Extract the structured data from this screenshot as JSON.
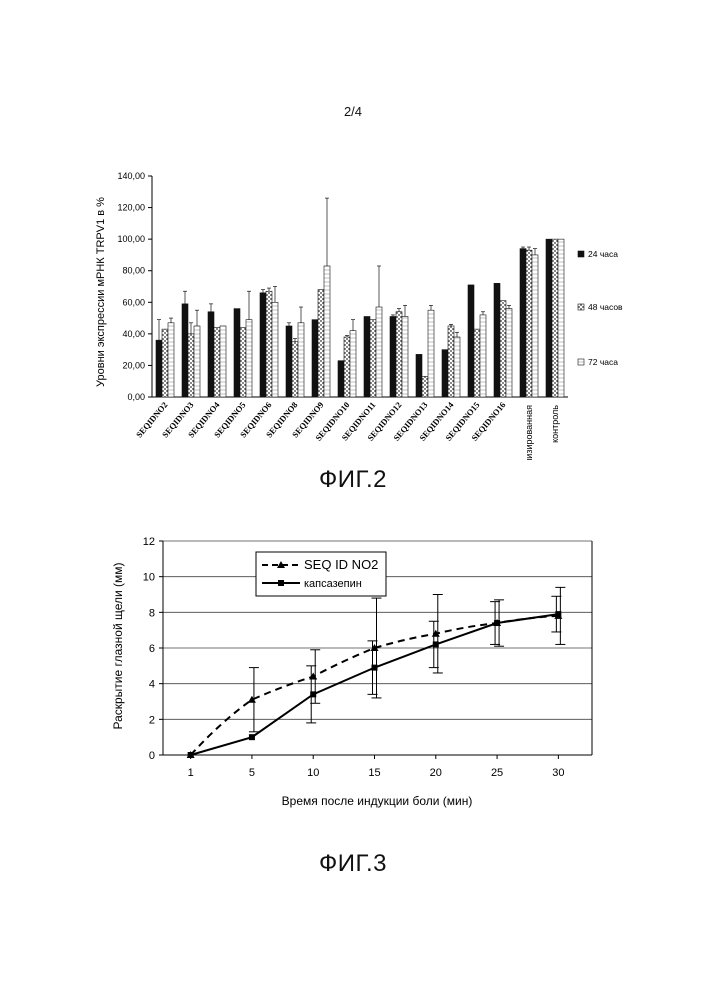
{
  "page_number": "2/4",
  "chart_data": [
    {
      "type": "bar",
      "caption": "ФИГ.2",
      "title": "",
      "ylabel": "Уровни экспрессии мРНК TRPV1 в %",
      "xlabel": "",
      "ylim": [
        0,
        140
      ],
      "yticks": [
        "0,00",
        "20,00",
        "40,00",
        "60,00",
        "80,00",
        "100,00",
        "120,00",
        "140,00"
      ],
      "categories": [
        "SEQIDNO2",
        "SEQIDNO3",
        "SEQIDNO4",
        "SEQIDNO5",
        "SEQIDNO6",
        "SEQIDNO8",
        "SEQIDNO9",
        "SEQIDNO10",
        "SEQIDNO11",
        "SEQIDNO12",
        "SEQIDNO13",
        "SEQIDNO14",
        "SEQIDNO15",
        "SEQIDNO16",
        "рандомизированная",
        "контроль"
      ],
      "series": [
        {
          "name": "24 часа",
          "pattern": "solid",
          "values": [
            36,
            59,
            54,
            56,
            66,
            45,
            49,
            23,
            51,
            51,
            27,
            30,
            71,
            72,
            94,
            100
          ],
          "errors": [
            13,
            8,
            5,
            0,
            2,
            2,
            0,
            0,
            0,
            1,
            0,
            0,
            0,
            0,
            1,
            0
          ]
        },
        {
          "name": "48 часов",
          "pattern": "dotted",
          "values": [
            43,
            40,
            44,
            44,
            67,
            35,
            68,
            38,
            49,
            54,
            13,
            45,
            43,
            61,
            93,
            100
          ],
          "errors": [
            0,
            7,
            0,
            0,
            2,
            2,
            0,
            1,
            0,
            2,
            0,
            1,
            0,
            0,
            2,
            0
          ]
        },
        {
          "name": "72 часа",
          "pattern": "hatched",
          "values": [
            47,
            45,
            45,
            49,
            60,
            47,
            83,
            42,
            57,
            51,
            55,
            38,
            52,
            56,
            90,
            100
          ],
          "errors": [
            3,
            10,
            0,
            18,
            10,
            10,
            43,
            7,
            26,
            7,
            3,
            3,
            2,
            2,
            4,
            0
          ]
        }
      ],
      "legend_position": "right"
    },
    {
      "type": "line",
      "caption": "ФИГ.3",
      "title": "",
      "xlabel": "Время после индукции боли (мин)",
      "ylabel": "Раскрытие глазной щели (мм)",
      "x": [
        "1",
        "5",
        "10",
        "15",
        "20",
        "25",
        "30"
      ],
      "ylim": [
        0,
        12
      ],
      "yticks": [
        "0",
        "2",
        "4",
        "6",
        "8",
        "10",
        "12"
      ],
      "grid": true,
      "series": [
        {
          "name": "SEQ ID NO2",
          "style": "dashed",
          "marker": "triangle",
          "values": [
            0,
            3.1,
            4.4,
            6.0,
            6.8,
            7.4,
            7.8
          ],
          "errors": [
            0,
            1.8,
            1.5,
            2.8,
            2.2,
            1.3,
            1.6
          ]
        },
        {
          "name": "капсазепин",
          "style": "solid",
          "marker": "square",
          "values": [
            0,
            1.0,
            3.4,
            4.9,
            6.2,
            7.4,
            7.9
          ],
          "errors": [
            0,
            0,
            1.6,
            1.5,
            1.3,
            1.2,
            1.0
          ]
        }
      ],
      "legend_position": "top-left inside"
    }
  ]
}
